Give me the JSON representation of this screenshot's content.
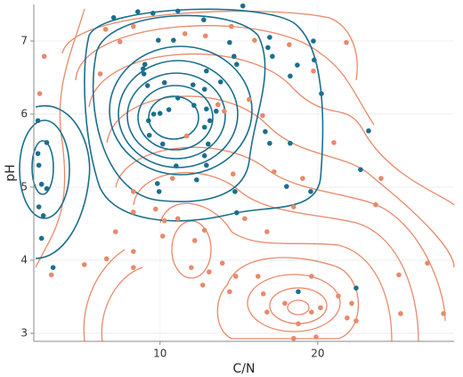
{
  "chart_data": {
    "type": "scatter",
    "x_label": "C/N",
    "y_label": "pH",
    "xlim": [
      2,
      28.64
    ],
    "ylim": [
      2.89,
      7.5
    ],
    "xticks": [
      10,
      20
    ],
    "yticks": [
      3,
      4,
      5,
      6,
      7
    ],
    "grid": true,
    "series": [
      {
        "color": "#e8896a",
        "x": [
          2.66,
          2.37,
          6.21,
          6.55,
          7.46,
          8.31,
          11.58,
          12.88,
          14.52,
          15.99,
          18.19,
          19.72,
          21.81,
          13.67,
          14.07,
          15.65,
          16.5,
          11.69,
          14.63,
          17.23,
          18.47,
          19.04,
          21.02,
          10.79,
          8.31,
          8.31,
          7.18,
          6.61,
          8.31,
          10.17,
          10.28,
          12.2,
          12.82,
          13.11,
          11.98,
          13.95,
          14.41,
          12.71,
          14.8,
          16.21,
          16.55,
          16.78,
          17.91,
          19.6,
          19.6,
          18.76,
          20.17,
          21.3,
          22.15,
          21.86,
          18.47,
          19.89,
          22.43,
          25.25,
          25.14,
          26.95,
          27.97,
          24.01,
          23.67,
          5.2,
          3.11,
          8.31,
          9.72,
          11.13,
          15.37,
          16.78
        ],
        "values": [
          6.79,
          6.28,
          6.55,
          7.16,
          6.99,
          7.2,
          7.1,
          7.07,
          7.2,
          7.01,
          6.95,
          6.59,
          6.98,
          6.13,
          6.04,
          6.2,
          5.98,
          5.7,
          5.18,
          5.21,
          4.73,
          5.12,
          5.61,
          5.12,
          4.94,
          4.66,
          4.39,
          4.02,
          3.9,
          4.33,
          4.54,
          4.27,
          4.41,
          3.84,
          3.9,
          3.96,
          3.57,
          3.66,
          3.78,
          3.78,
          3.54,
          3.29,
          3.41,
          3.78,
          3.29,
          3.13,
          3.35,
          3.51,
          3.41,
          3.21,
          2.93,
          2.95,
          3.17,
          3.27,
          3.8,
          3.96,
          3.27,
          5.12,
          4.76,
          3.94,
          3.8,
          4.12,
          4.7,
          4.57,
          4.57,
          4.39
        ]
      },
      {
        "color": "#1b6f8c",
        "x": [
          7.06,
          8.59,
          9.55,
          11.13,
          12.77,
          15.25,
          14.41,
          9.89,
          10.85,
          8.93,
          9.04,
          8.98,
          10.28,
          11.13,
          12.94,
          14.69,
          14.86,
          16.95,
          16.84,
          17.12,
          19.77,
          19.72,
          18.7,
          18.25,
          13.84,
          12.82,
          12.09,
          12.15,
          12.94,
          10.56,
          9.27,
          9.6,
          9.32,
          10.17,
          12.82,
          13.05,
          12.82,
          12.94,
          11.02,
          9.83,
          9.94,
          12.32,
          14.75,
          14.86,
          16.67,
          16.95,
          18.25,
          18.02,
          19.55,
          23.22,
          22.71,
          2.26,
          2.26,
          2.32,
          2.49,
          2.82,
          2.82,
          2.32,
          2.6,
          2.49,
          3.22,
          20.23,
          13.16,
          13.56,
          9.21,
          10.0,
          18.76,
          22.43
        ],
        "values": [
          7.32,
          7.4,
          7.38,
          7.41,
          7.29,
          7.48,
          6.98,
          7.01,
          7.01,
          6.62,
          6.68,
          6.55,
          6.43,
          6.22,
          6.59,
          6.79,
          6.68,
          7.05,
          6.91,
          6.79,
          6.74,
          7.0,
          6.67,
          6.52,
          6.44,
          6.34,
          6.4,
          6.12,
          6.07,
          6.06,
          5.91,
          6.0,
          5.71,
          5.59,
          5.82,
          5.59,
          5.43,
          5.3,
          5.29,
          5.05,
          4.94,
          5.1,
          4.94,
          4.65,
          5.76,
          5.6,
          5.6,
          5.01,
          4.94,
          5.77,
          5.24,
          5.91,
          5.46,
          5.3,
          5.04,
          4.98,
          5.61,
          4.73,
          4.61,
          4.3,
          3.9,
          6.28,
          5.91,
          6.04,
          6.39,
          6.01,
          3.57,
          3.62
        ]
      }
    ]
  }
}
